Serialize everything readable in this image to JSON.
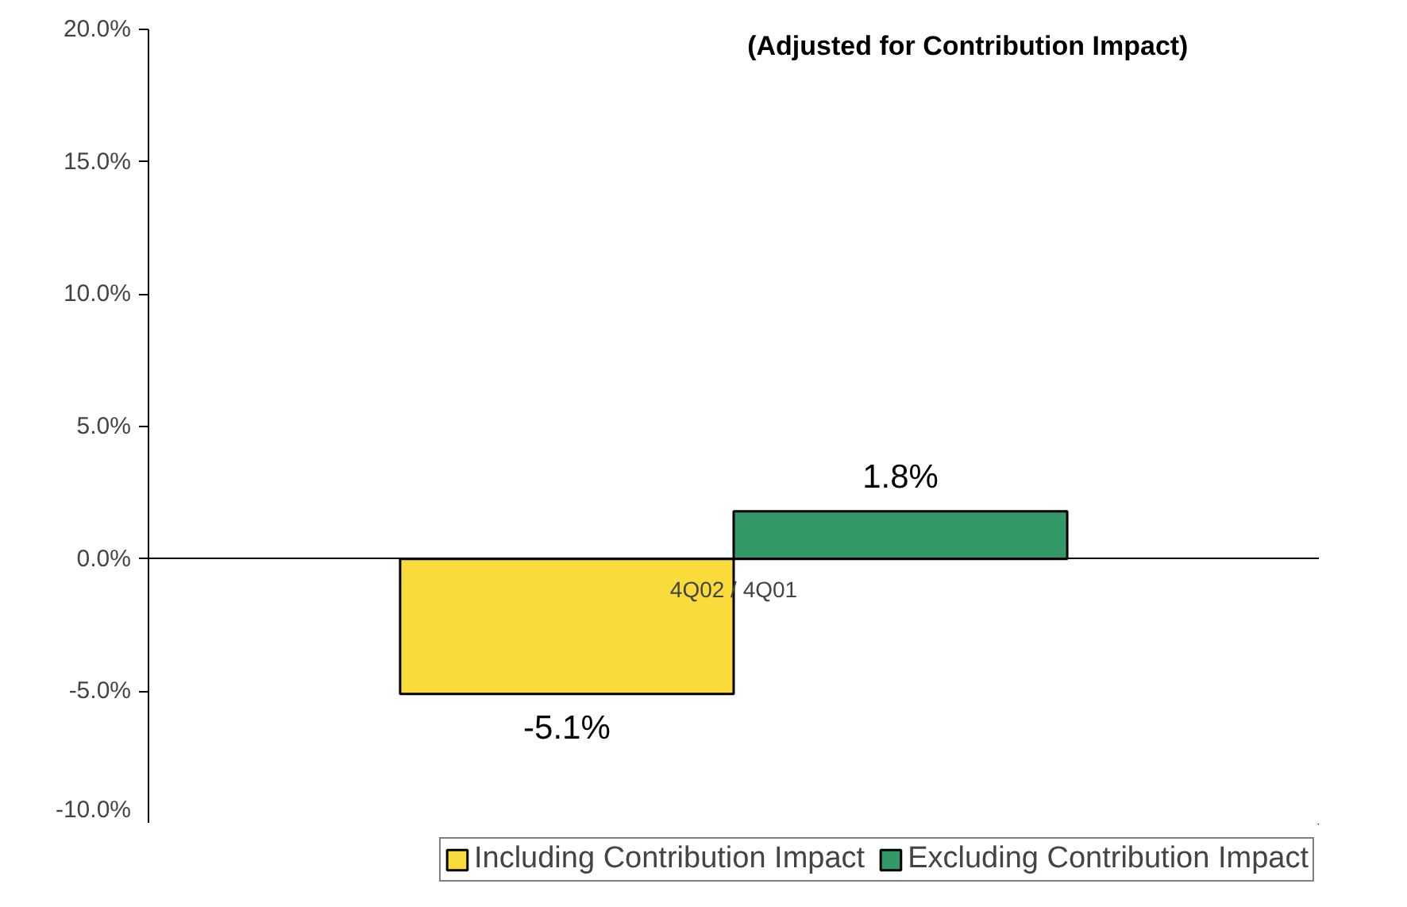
{
  "chart_data": {
    "type": "bar",
    "title": "(Adjusted for Contribution Impact)",
    "categories": [
      "4Q02 / 4Q01"
    ],
    "series": [
      {
        "name": "Including Contribution Impact",
        "color": "#f9dc3c",
        "values": [
          -5.1
        ],
        "value_labels": [
          "-5.1%"
        ]
      },
      {
        "name": "Excluding Contribution Impact",
        "color": "#339966",
        "values": [
          1.8
        ],
        "value_labels": [
          "1.8%"
        ]
      }
    ],
    "ylim": [
      -10,
      20
    ],
    "yticks": [
      {
        "value": -10,
        "label": "-10.0%"
      },
      {
        "value": -5,
        "label": "-5.0%"
      },
      {
        "value": 0,
        "label": "0.0%"
      },
      {
        "value": 5,
        "label": "5.0%"
      },
      {
        "value": 10,
        "label": "10.0%"
      },
      {
        "value": 15,
        "label": "15.0%"
      },
      {
        "value": 20,
        "label": "20.0%"
      }
    ],
    "legend": "bottom"
  }
}
